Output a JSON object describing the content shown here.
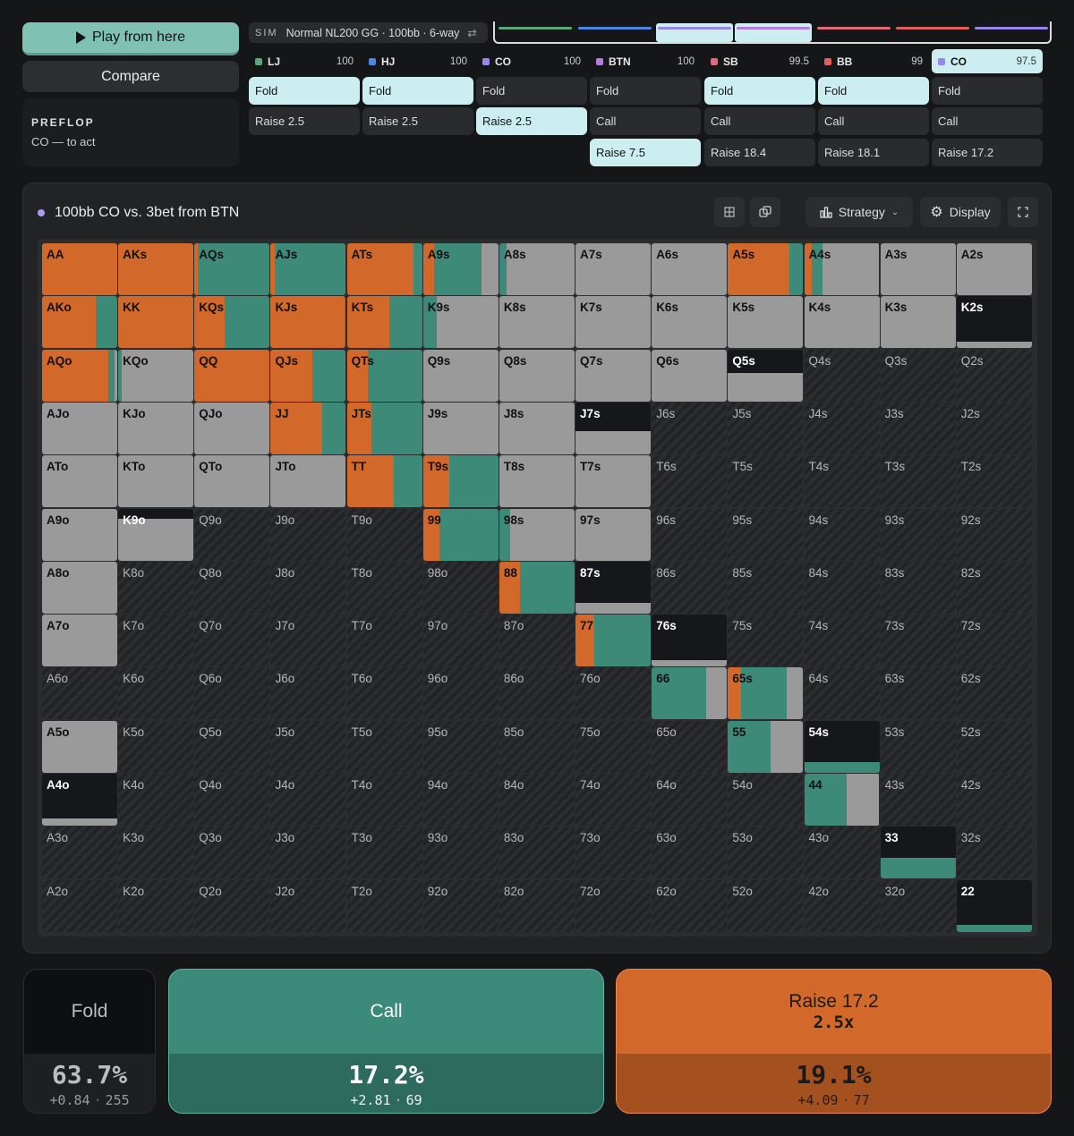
{
  "sidebar": {
    "play_label": "Play from here",
    "compare_label": "Compare",
    "street": "PREFLOP",
    "to_act": "CO — to act"
  },
  "sim": {
    "tag": "SIM",
    "name": "Normal NL200 GG · 100bb · 6-way",
    "swap_icon": "⇄"
  },
  "positions": [
    {
      "name": "LJ",
      "stack": "100",
      "color": "#5aa77a",
      "active": false,
      "actions": [
        {
          "label": "Fold",
          "selected": true
        },
        {
          "label": "Raise 2.5",
          "selected": false
        }
      ]
    },
    {
      "name": "HJ",
      "stack": "100",
      "color": "#4a88e0",
      "active": false,
      "actions": [
        {
          "label": "Fold",
          "selected": true
        },
        {
          "label": "Raise 2.5",
          "selected": false
        }
      ]
    },
    {
      "name": "CO",
      "stack": "100",
      "color": "#9a86e8",
      "active": false,
      "actions": [
        {
          "label": "Fold",
          "selected": false
        },
        {
          "label": "Raise 2.5",
          "selected": true
        }
      ]
    },
    {
      "name": "BTN",
      "stack": "100",
      "color": "#b57de0",
      "active": false,
      "actions": [
        {
          "label": "Fold",
          "selected": false
        },
        {
          "label": "Call",
          "selected": false
        },
        {
          "label": "Raise 7.5",
          "selected": true
        }
      ]
    },
    {
      "name": "SB",
      "stack": "99.5",
      "color": "#e06a7a",
      "active": false,
      "actions": [
        {
          "label": "Fold",
          "selected": true
        },
        {
          "label": "Call",
          "selected": false
        },
        {
          "label": "Raise 18.4",
          "selected": false
        }
      ]
    },
    {
      "name": "BB",
      "stack": "99",
      "color": "#e06060",
      "active": false,
      "actions": [
        {
          "label": "Fold",
          "selected": true
        },
        {
          "label": "Call",
          "selected": false
        },
        {
          "label": "Raise 18.1",
          "selected": false
        }
      ]
    },
    {
      "name": "CO",
      "stack": "97.5",
      "color": "#9a86e8",
      "active": true,
      "actions": [
        {
          "label": "Fold",
          "selected": false
        },
        {
          "label": "Call",
          "selected": false
        },
        {
          "label": "Raise 17.2",
          "selected": false
        }
      ]
    }
  ],
  "panel": {
    "title": "100bb CO vs. 3bet from BTN",
    "strategy_label": "Strategy",
    "display_label": "Display"
  },
  "colors": {
    "raise": "#d2692b",
    "call": "#3d8a78",
    "fold": "#9a9a9a"
  },
  "matrix": {
    "labels": [
      [
        "AA",
        "AKs",
        "AQs",
        "AJs",
        "ATs",
        "A9s",
        "A8s",
        "A7s",
        "A6s",
        "A5s",
        "A4s",
        "A3s",
        "A2s"
      ],
      [
        "AKo",
        "KK",
        "KQs",
        "KJs",
        "KTs",
        "K9s",
        "K8s",
        "K7s",
        "K6s",
        "K5s",
        "K4s",
        "K3s",
        "K2s"
      ],
      [
        "AQo",
        "KQo",
        "QQ",
        "QJs",
        "QTs",
        "Q9s",
        "Q8s",
        "Q7s",
        "Q6s",
        "Q5s",
        "Q4s",
        "Q3s",
        "Q2s"
      ],
      [
        "AJo",
        "KJo",
        "QJo",
        "JJ",
        "JTs",
        "J9s",
        "J8s",
        "J7s",
        "J6s",
        "J5s",
        "J4s",
        "J3s",
        "J2s"
      ],
      [
        "ATo",
        "KTo",
        "QTo",
        "JTo",
        "TT",
        "T9s",
        "T8s",
        "T7s",
        "T6s",
        "T5s",
        "T4s",
        "T3s",
        "T2s"
      ],
      [
        "A9o",
        "K9o",
        "Q9o",
        "J9o",
        "T9o",
        "99",
        "98s",
        "97s",
        "96s",
        "95s",
        "94s",
        "93s",
        "92s"
      ],
      [
        "A8o",
        "K8o",
        "Q8o",
        "J8o",
        "T8o",
        "98o",
        "88",
        "87s",
        "86s",
        "85s",
        "84s",
        "83s",
        "82s"
      ],
      [
        "A7o",
        "K7o",
        "Q7o",
        "J7o",
        "T7o",
        "97o",
        "87o",
        "77",
        "76s",
        "75s",
        "74s",
        "73s",
        "72s"
      ],
      [
        "A6o",
        "K6o",
        "Q6o",
        "J6o",
        "T6o",
        "96o",
        "86o",
        "76o",
        "66",
        "65s",
        "64s",
        "63s",
        "62s"
      ],
      [
        "A5o",
        "K5o",
        "Q5o",
        "J5o",
        "T5o",
        "95o",
        "85o",
        "75o",
        "65o",
        "55",
        "54s",
        "53s",
        "52s"
      ],
      [
        "A4o",
        "K4o",
        "Q4o",
        "J4o",
        "T4o",
        "94o",
        "84o",
        "74o",
        "64o",
        "54o",
        "44",
        "43s",
        "42s"
      ],
      [
        "A3o",
        "K3o",
        "Q3o",
        "J3o",
        "T3o",
        "93o",
        "83o",
        "73o",
        "63o",
        "53o",
        "43o",
        "33",
        "32s"
      ],
      [
        "A2o",
        "K2o",
        "Q2o",
        "J2o",
        "T2o",
        "92o",
        "82o",
        "72o",
        "62o",
        "52o",
        "42o",
        "32o",
        "22"
      ]
    ],
    "hands": {
      "AA": {
        "w": 1,
        "r": 1,
        "c": 0
      },
      "AKs": {
        "w": 1,
        "r": 1,
        "c": 0
      },
      "AQs": {
        "w": 1,
        "r": 0.05,
        "c": 0.95
      },
      "AJs": {
        "w": 1,
        "r": 0.05,
        "c": 0.95
      },
      "ATs": {
        "w": 1,
        "r": 0.88,
        "c": 0.12
      },
      "A9s": {
        "w": 1,
        "r": 0.15,
        "c": 0.63
      },
      "A8s": {
        "w": 1,
        "r": 0,
        "c": 0.1
      },
      "A7s": {
        "w": 1,
        "r": 0,
        "c": 0
      },
      "A6s": {
        "w": 1,
        "r": 0,
        "c": 0
      },
      "A5s": {
        "w": 1,
        "r": 0.82,
        "c": 0.18
      },
      "A4s": {
        "w": 1,
        "r": 0.1,
        "c": 0.15
      },
      "A3s": {
        "w": 1,
        "r": 0,
        "c": 0
      },
      "A2s": {
        "w": 1,
        "r": 0,
        "c": 0
      },
      "AKo": {
        "w": 1,
        "r": 0.72,
        "c": 0.28
      },
      "KK": {
        "w": 1,
        "r": 1,
        "c": 0
      },
      "KQs": {
        "w": 1,
        "r": 0.4,
        "c": 0.6
      },
      "KJs": {
        "w": 1,
        "r": 0.98,
        "c": 0.02
      },
      "KTs": {
        "w": 1,
        "r": 0.56,
        "c": 0.44
      },
      "K9s": {
        "w": 1,
        "r": 0,
        "c": 0.18
      },
      "K8s": {
        "w": 1,
        "r": 0,
        "c": 0
      },
      "K7s": {
        "w": 1,
        "r": 0,
        "c": 0
      },
      "K6s": {
        "w": 1,
        "r": 0,
        "c": 0
      },
      "K5s": {
        "w": 1,
        "r": 0,
        "c": 0
      },
      "K4s": {
        "w": 1,
        "r": 0,
        "c": 0
      },
      "K3s": {
        "w": 1,
        "r": 0,
        "c": 0
      },
      "K2s": {
        "w": 0.13,
        "r": 0,
        "c": 0
      },
      "AQo": {
        "w": 1,
        "r": 0.88,
        "c": 0.08
      },
      "KQo": {
        "w": 1,
        "r": 0,
        "c": 0.05
      },
      "QQ": {
        "w": 1,
        "r": 1,
        "c": 0
      },
      "QJs": {
        "w": 1,
        "r": 0.56,
        "c": 0.44
      },
      "QTs": {
        "w": 1,
        "r": 0.28,
        "c": 0.72
      },
      "Q9s": {
        "w": 1,
        "r": 0,
        "c": 0
      },
      "Q8s": {
        "w": 1,
        "r": 0,
        "c": 0
      },
      "Q7s": {
        "w": 1,
        "r": 0,
        "c": 0
      },
      "Q6s": {
        "w": 1,
        "r": 0,
        "c": 0
      },
      "Q5s": {
        "w": 0.55,
        "r": 0,
        "c": 0
      },
      "AJo": {
        "w": 1,
        "r": 0,
        "c": 0
      },
      "KJo": {
        "w": 1,
        "r": 0,
        "c": 0
      },
      "QJo": {
        "w": 1,
        "r": 0,
        "c": 0
      },
      "JJ": {
        "w": 1,
        "r": 0.68,
        "c": 0.32
      },
      "JTs": {
        "w": 1,
        "r": 0.33,
        "c": 0.67
      },
      "J9s": {
        "w": 1,
        "r": 0,
        "c": 0
      },
      "J8s": {
        "w": 1,
        "r": 0,
        "c": 0
      },
      "J7s": {
        "w": 0.44,
        "r": 0,
        "c": 0
      },
      "ATo": {
        "w": 1,
        "r": 0,
        "c": 0
      },
      "KTo": {
        "w": 1,
        "r": 0,
        "c": 0
      },
      "QTo": {
        "w": 1,
        "r": 0,
        "c": 0
      },
      "JTo": {
        "w": 1,
        "r": 0,
        "c": 0
      },
      "TT": {
        "w": 1,
        "r": 0.62,
        "c": 0.38
      },
      "T9s": {
        "w": 1,
        "r": 0.35,
        "c": 0.65
      },
      "T8s": {
        "w": 1,
        "r": 0,
        "c": 0
      },
      "T7s": {
        "w": 1,
        "r": 0,
        "c": 0
      },
      "A9o": {
        "w": 1,
        "r": 0,
        "c": 0
      },
      "K9o": {
        "w": 0.8,
        "r": 0,
        "c": 0
      },
      "99": {
        "w": 1,
        "r": 0.22,
        "c": 0.78
      },
      "98s": {
        "w": 1,
        "r": 0,
        "c": 0.15
      },
      "97s": {
        "w": 1,
        "r": 0,
        "c": 0
      },
      "A8o": {
        "w": 1,
        "r": 0,
        "c": 0
      },
      "88": {
        "w": 1,
        "r": 0.27,
        "c": 0.73
      },
      "87s": {
        "w": 0.2,
        "r": 0,
        "c": 0
      },
      "A7o": {
        "w": 1,
        "r": 0,
        "c": 0
      },
      "77": {
        "w": 1,
        "r": 0.25,
        "c": 0.75
      },
      "76s": {
        "w": 0.13,
        "r": 0,
        "c": 0
      },
      "66": {
        "w": 1,
        "r": 0,
        "c": 0.72
      },
      "65s": {
        "w": 1,
        "r": 0.18,
        "c": 0.6
      },
      "A5o": {
        "w": 1,
        "r": 0,
        "c": 0
      },
      "55": {
        "w": 1,
        "r": 0,
        "c": 0.57
      },
      "54s": {
        "w": 0.2,
        "r": 0,
        "c": 1
      },
      "A4o": {
        "w": 0.13,
        "r": 0,
        "c": 0
      },
      "44": {
        "w": 1,
        "r": 0,
        "c": 0.57
      },
      "33": {
        "w": 0.41,
        "r": 0,
        "c": 1
      },
      "22": {
        "w": 0.13,
        "r": 0,
        "c": 1
      }
    }
  },
  "summary": {
    "fold": {
      "label": "Fold",
      "pct": "63.7%",
      "ev": "+0.84",
      "combos": "255"
    },
    "call": {
      "label": "Call",
      "pct": "17.2%",
      "ev": "+2.81",
      "combos": "69"
    },
    "raise": {
      "label": "Raise 17.2",
      "sub": "2.5x",
      "pct": "19.1%",
      "ev": "+4.09",
      "combos": "77"
    }
  }
}
